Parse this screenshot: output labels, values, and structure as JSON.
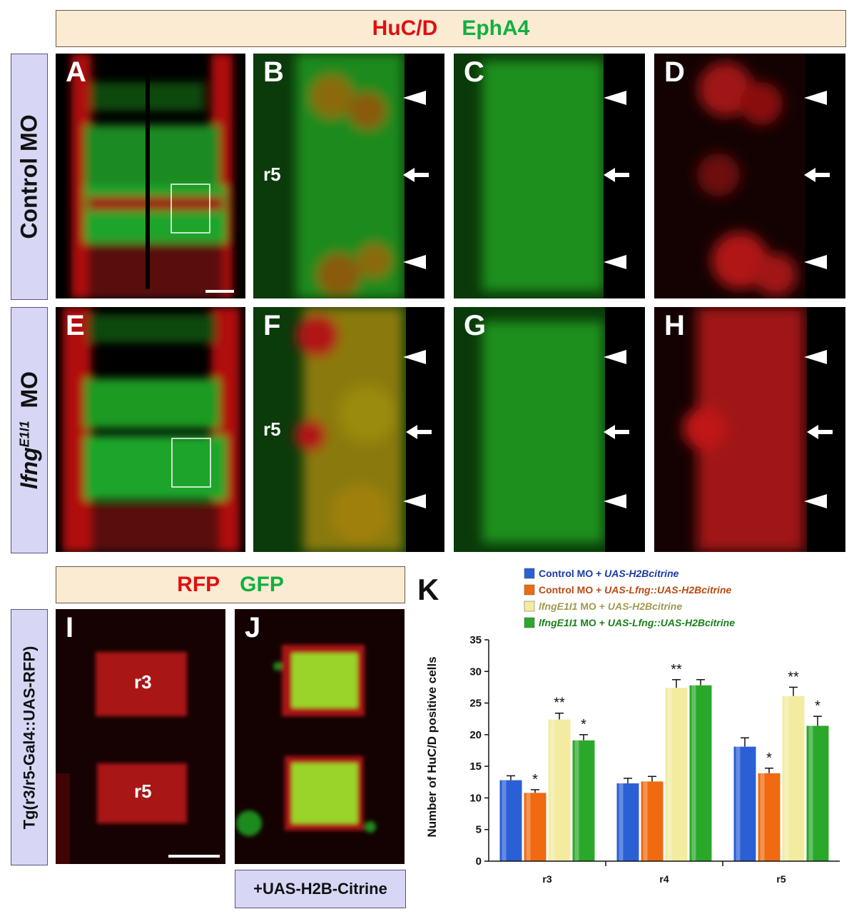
{
  "top_banner": {
    "red": "HuC/D",
    "green": "EphA4"
  },
  "row_labels": {
    "control": "Control MO",
    "lfng_prefix": "lfng",
    "lfng_sup": "E1I1",
    "lfng_suffix": "MO"
  },
  "panels": [
    "A",
    "B",
    "C",
    "D",
    "E",
    "F",
    "G",
    "H",
    "I",
    "J"
  ],
  "region_labels": {
    "b": "r5",
    "f": "r5",
    "i_top": "r3",
    "i_bottom": "r5"
  },
  "bottom_banner": {
    "red": "RFP",
    "green": "GFP"
  },
  "transgenic_label": "Tg(r3/r5-Gal4::UAS-RFP)",
  "j_footer": "+UAS-H2B-Citrine",
  "chart_data": {
    "type": "bar",
    "panel_letter": "K",
    "categories": [
      "r3",
      "r4",
      "r5"
    ],
    "ylabel": "Number of HuC/D positive cells",
    "ylim": [
      0,
      35
    ],
    "yticks": [
      0,
      5,
      10,
      15,
      20,
      25,
      30,
      35
    ],
    "legend_position": "top",
    "series": [
      {
        "name": "Control MO + UAS-H2Bcitrine",
        "name_plain": "Control MO + ",
        "name_italic": "UAS-H2Bcitrine",
        "color": "#2a5fd6",
        "text_color": "#1a3aa0",
        "values": [
          12.8,
          12.3,
          18.1
        ],
        "errors": [
          0.7,
          0.8,
          1.4
        ],
        "sig": [
          "",
          "",
          ""
        ]
      },
      {
        "name": "Control MO + UAS-Lfng::UAS-H2Bcitrine",
        "name_plain": "Control MO + ",
        "name_italic": "UAS-Lfng::UAS-H2Bcitrine",
        "color": "#ef6a10",
        "text_color": "#b84a10",
        "values": [
          10.8,
          12.6,
          13.9
        ],
        "errors": [
          0.5,
          0.8,
          0.8
        ],
        "sig": [
          "*",
          "",
          "*"
        ]
      },
      {
        "name": "lfngE1I1 MO + UAS-H2Bcitrine",
        "name_plain": "",
        "name_italic": "lfngE1I1",
        "name_plain2": " MO + ",
        "name_italic2": "UAS-H2Bcitrine",
        "color": "#f3eca0",
        "text_color": "#a09a50",
        "values": [
          22.4,
          27.4,
          26.1
        ],
        "errors": [
          1.0,
          1.3,
          1.4
        ],
        "sig": [
          "**",
          "**",
          "**"
        ]
      },
      {
        "name": "lfngE1I1 MO + UAS-Lfng::UAS-H2Bcitrine",
        "name_plain": "",
        "name_italic": "lfngE1I1",
        "name_plain2": " MO + ",
        "name_italic2": "UAS-Lfng::UAS-H2Bcitrine",
        "color": "#2aa82a",
        "text_color": "#1a801a",
        "values": [
          19.1,
          27.8,
          21.4
        ],
        "errors": [
          0.9,
          0.9,
          1.5
        ],
        "sig": [
          "*",
          "",
          "*"
        ]
      }
    ]
  }
}
